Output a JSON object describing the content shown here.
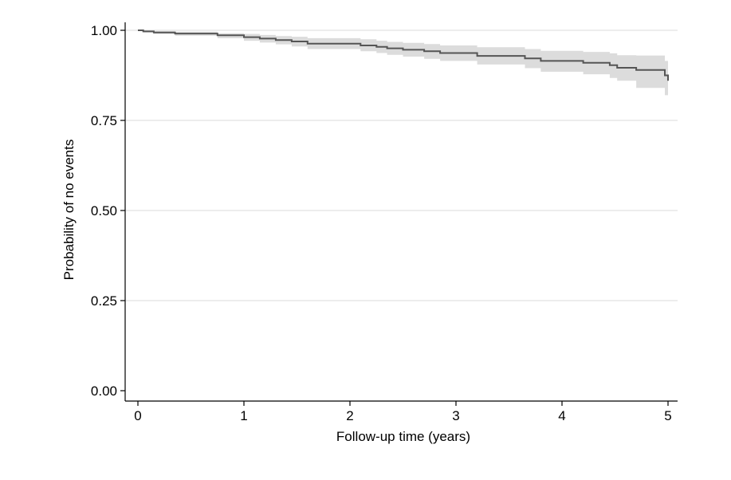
{
  "chart_data": {
    "type": "line",
    "title": "",
    "xlabel": "Follow-up time (years)",
    "ylabel": "Probability of no events",
    "xlim": [
      0,
      5
    ],
    "ylim": [
      0,
      1
    ],
    "x_ticks": [
      {
        "value": 0,
        "label": "0"
      },
      {
        "value": 1,
        "label": "1"
      },
      {
        "value": 2,
        "label": "2"
      },
      {
        "value": 3,
        "label": "3"
      },
      {
        "value": 4,
        "label": "4"
      },
      {
        "value": 5,
        "label": "5"
      }
    ],
    "y_ticks": [
      {
        "value": 0,
        "label": "0.00"
      },
      {
        "value": 0.25,
        "label": "0.25"
      },
      {
        "value": 0.5,
        "label": "0.50"
      },
      {
        "value": 0.75,
        "label": "0.75"
      },
      {
        "value": 1,
        "label": "1.00"
      }
    ],
    "grid": {
      "horizontal": true,
      "vertical": false
    },
    "legend": "none",
    "series": [
      {
        "style": "step",
        "color": "#555555",
        "ci_color": "#dcdcdc",
        "x": [
          0,
          0.05,
          0.15,
          0.35,
          0.75,
          1.0,
          1.15,
          1.3,
          1.45,
          1.6,
          2.1,
          2.25,
          2.35,
          2.5,
          2.7,
          2.85,
          3.2,
          3.65,
          3.8,
          4.2,
          4.45,
          4.52,
          4.7,
          4.97,
          5.0
        ],
        "y": [
          1.0,
          0.997,
          0.994,
          0.991,
          0.986,
          0.981,
          0.977,
          0.973,
          0.969,
          0.963,
          0.958,
          0.954,
          0.95,
          0.946,
          0.942,
          0.937,
          0.929,
          0.922,
          0.915,
          0.91,
          0.903,
          0.896,
          0.89,
          0.875,
          0.86
        ],
        "lower": [
          1.0,
          0.994,
          0.99,
          0.985,
          0.978,
          0.971,
          0.966,
          0.961,
          0.955,
          0.948,
          0.942,
          0.937,
          0.932,
          0.927,
          0.921,
          0.915,
          0.905,
          0.895,
          0.885,
          0.878,
          0.868,
          0.86,
          0.84,
          0.82,
          0.8
        ],
        "upper": [
          1.0,
          1.0,
          0.998,
          0.996,
          0.992,
          0.99,
          0.987,
          0.984,
          0.982,
          0.978,
          0.975,
          0.971,
          0.968,
          0.965,
          0.962,
          0.958,
          0.953,
          0.948,
          0.943,
          0.94,
          0.936,
          0.931,
          0.93,
          0.915,
          0.91
        ]
      }
    ]
  }
}
